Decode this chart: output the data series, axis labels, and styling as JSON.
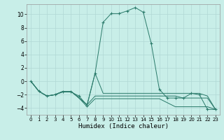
{
  "xlabel": "Humidex (Indice chaleur)",
  "background_color": "#c8eee8",
  "grid_color": "#b0d8d4",
  "line_color": "#2a7a6a",
  "xlim": [
    -0.5,
    23.5
  ],
  "ylim": [
    -5,
    11.5
  ],
  "yticks": [
    -4,
    -2,
    0,
    2,
    4,
    6,
    8,
    10
  ],
  "xticks": [
    0,
    1,
    2,
    3,
    4,
    5,
    6,
    7,
    8,
    9,
    10,
    11,
    12,
    13,
    14,
    15,
    16,
    17,
    18,
    19,
    20,
    21,
    22,
    23
  ],
  "series": [
    [
      0,
      -1.5,
      -2.2,
      -2.0,
      -1.5,
      -1.5,
      -2.5,
      -3.5,
      1.2,
      -1.8,
      -1.8,
      -1.8,
      -1.8,
      -1.8,
      -1.8,
      -1.8,
      -1.8,
      -1.8,
      -1.8,
      -1.8,
      -1.8,
      -1.8,
      -2.2,
      -4.2
    ],
    [
      0,
      -1.5,
      -2.2,
      -2.0,
      -1.5,
      -1.5,
      -2.5,
      -3.5,
      -2.2,
      -2.2,
      -2.2,
      -2.2,
      -2.2,
      -2.2,
      -2.2,
      -2.2,
      -2.2,
      -2.2,
      -2.2,
      -2.5,
      -2.5,
      -2.5,
      -2.5,
      -4.2
    ],
    [
      0,
      -1.5,
      -2.2,
      -2.0,
      -1.5,
      -1.5,
      -2.5,
      -3.8,
      -2.6,
      -2.6,
      -2.6,
      -2.6,
      -2.6,
      -2.6,
      -2.6,
      -2.6,
      -2.6,
      -3.2,
      -3.8,
      -3.8,
      -3.8,
      -3.8,
      -3.8,
      -4.2
    ],
    [
      0,
      -1.5,
      -2.2,
      -2.0,
      -1.6,
      -1.6,
      -2.2,
      -3.6,
      1.2,
      8.8,
      10.1,
      10.1,
      10.5,
      11.0,
      10.3,
      5.6,
      -1.2,
      -2.5,
      -2.5,
      -2.5,
      -1.8,
      -2.0,
      -4.2,
      -4.2
    ]
  ]
}
